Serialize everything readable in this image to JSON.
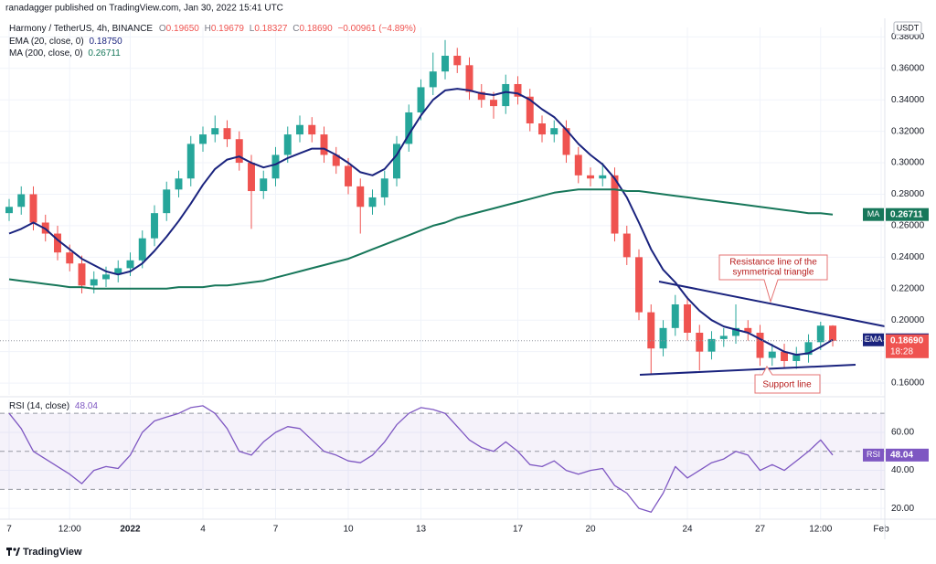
{
  "header": {
    "published": "ranadagger published on TradingView.com, Jan 30, 2022 15:41 UTC"
  },
  "chart_data": [
    {
      "type": "candlestick",
      "title": "Harmony / TetherUS, 4h, BINANCE",
      "quote": [
        "O",
        "0.19650",
        "H",
        "0.19679",
        "L",
        "0.18327",
        "C",
        "0.18690",
        "−0.00961 (−4.89%)"
      ],
      "currency": "USDT",
      "x": [
        0,
        0.5,
        1,
        1.5,
        2,
        2.5,
        3,
        3.5,
        4,
        4.5,
        5,
        5.5,
        6,
        6.5,
        7,
        7.5,
        8,
        8.5,
        9,
        9.5,
        10,
        10.5,
        11,
        11.5,
        12,
        12.5,
        13,
        13.5,
        14,
        14.5,
        15,
        15.5,
        16,
        16.5,
        17,
        17.5,
        18,
        18.5,
        19,
        19.5,
        20,
        20.5,
        21,
        21.5,
        22,
        22.5,
        23,
        23.5,
        24,
        24.5,
        25,
        25.5,
        26,
        26.5,
        27,
        27.5,
        28,
        28.5,
        29,
        29.5,
        30,
        30.5,
        31,
        31.5,
        32,
        32.5,
        33,
        33.5,
        34
      ],
      "open": [
        0.268,
        0.272,
        0.28,
        0.262,
        0.255,
        0.243,
        0.236,
        0.222,
        0.226,
        0.229,
        0.233,
        0.238,
        0.252,
        0.268,
        0.283,
        0.29,
        0.312,
        0.318,
        0.322,
        0.315,
        0.3,
        0.282,
        0.29,
        0.305,
        0.318,
        0.324,
        0.318,
        0.305,
        0.298,
        0.285,
        0.272,
        0.278,
        0.29,
        0.312,
        0.332,
        0.348,
        0.358,
        0.368,
        0.362,
        0.345,
        0.34,
        0.336,
        0.35,
        0.342,
        0.325,
        0.318,
        0.322,
        0.305,
        0.292,
        0.29,
        0.292,
        0.255,
        0.24,
        0.205,
        0.182,
        0.195,
        0.21,
        0.192,
        0.18,
        0.188,
        0.19,
        0.195,
        0.192,
        0.176,
        0.18,
        0.174,
        0.178,
        0.186,
        0.1965
      ],
      "high": [
        0.277,
        0.285,
        0.285,
        0.267,
        0.26,
        0.248,
        0.241,
        0.231,
        0.234,
        0.238,
        0.243,
        0.257,
        0.273,
        0.288,
        0.295,
        0.317,
        0.323,
        0.33,
        0.327,
        0.32,
        0.305,
        0.295,
        0.31,
        0.323,
        0.33,
        0.329,
        0.323,
        0.31,
        0.303,
        0.29,
        0.283,
        0.295,
        0.317,
        0.337,
        0.353,
        0.37,
        0.378,
        0.373,
        0.367,
        0.35,
        0.345,
        0.356,
        0.355,
        0.347,
        0.33,
        0.327,
        0.327,
        0.31,
        0.297,
        0.3,
        0.297,
        0.26,
        0.245,
        0.21,
        0.2,
        0.216,
        0.215,
        0.197,
        0.193,
        0.195,
        0.21,
        0.2,
        0.197,
        0.185,
        0.185,
        0.183,
        0.191,
        0.199,
        0.19679
      ],
      "low": [
        0.263,
        0.267,
        0.257,
        0.25,
        0.238,
        0.231,
        0.217,
        0.217,
        0.221,
        0.224,
        0.228,
        0.233,
        0.247,
        0.263,
        0.278,
        0.285,
        0.307,
        0.313,
        0.31,
        0.295,
        0.258,
        0.277,
        0.285,
        0.3,
        0.313,
        0.313,
        0.3,
        0.293,
        0.28,
        0.255,
        0.267,
        0.273,
        0.285,
        0.307,
        0.327,
        0.343,
        0.353,
        0.357,
        0.34,
        0.335,
        0.328,
        0.331,
        0.337,
        0.32,
        0.313,
        0.313,
        0.3,
        0.287,
        0.285,
        0.285,
        0.25,
        0.235,
        0.2,
        0.166,
        0.177,
        0.19,
        0.187,
        0.168,
        0.175,
        0.183,
        0.185,
        0.187,
        0.171,
        0.171,
        0.169,
        0.169,
        0.173,
        0.181,
        0.18327
      ],
      "close": [
        0.272,
        0.28,
        0.262,
        0.255,
        0.243,
        0.236,
        0.222,
        0.226,
        0.229,
        0.233,
        0.238,
        0.252,
        0.268,
        0.283,
        0.29,
        0.312,
        0.318,
        0.322,
        0.315,
        0.3,
        0.282,
        0.29,
        0.305,
        0.318,
        0.324,
        0.318,
        0.305,
        0.298,
        0.285,
        0.272,
        0.278,
        0.29,
        0.312,
        0.332,
        0.348,
        0.358,
        0.368,
        0.362,
        0.345,
        0.34,
        0.336,
        0.35,
        0.342,
        0.325,
        0.318,
        0.322,
        0.305,
        0.292,
        0.29,
        0.292,
        0.255,
        0.24,
        0.205,
        0.182,
        0.195,
        0.21,
        0.192,
        0.18,
        0.188,
        0.19,
        0.195,
        0.192,
        0.176,
        0.18,
        0.174,
        0.178,
        0.186,
        0.1965,
        0.1869
      ],
      "up_color": "#26a69a",
      "down_color": "#ef5350",
      "series": [
        {
          "name": "EMA (20, close, 0)",
          "tag": "EMA",
          "color": "#1a237e",
          "last_label": "0.18750",
          "values": [
            0.255,
            0.258,
            0.262,
            0.258,
            0.251,
            0.245,
            0.239,
            0.235,
            0.231,
            0.229,
            0.231,
            0.236,
            0.244,
            0.253,
            0.263,
            0.274,
            0.286,
            0.296,
            0.302,
            0.304,
            0.3,
            0.297,
            0.299,
            0.303,
            0.306,
            0.309,
            0.309,
            0.305,
            0.3,
            0.294,
            0.292,
            0.296,
            0.305,
            0.318,
            0.33,
            0.34,
            0.346,
            0.347,
            0.346,
            0.344,
            0.343,
            0.345,
            0.344,
            0.34,
            0.334,
            0.329,
            0.321,
            0.312,
            0.305,
            0.299,
            0.29,
            0.278,
            0.262,
            0.245,
            0.232,
            0.224,
            0.214,
            0.206,
            0.2,
            0.196,
            0.194,
            0.192,
            0.188,
            0.184,
            0.18,
            0.178,
            0.179,
            0.183,
            0.1875
          ]
        },
        {
          "name": "MA (200, close, 0)",
          "tag": "MA",
          "color": "#17775a",
          "last_label": "0.26711",
          "values": [
            0.226,
            0.225,
            0.224,
            0.223,
            0.222,
            0.221,
            0.221,
            0.22,
            0.22,
            0.22,
            0.22,
            0.22,
            0.22,
            0.22,
            0.221,
            0.221,
            0.221,
            0.222,
            0.222,
            0.223,
            0.224,
            0.225,
            0.227,
            0.229,
            0.231,
            0.233,
            0.235,
            0.237,
            0.239,
            0.242,
            0.245,
            0.248,
            0.251,
            0.254,
            0.257,
            0.26,
            0.262,
            0.265,
            0.267,
            0.269,
            0.271,
            0.273,
            0.275,
            0.277,
            0.279,
            0.281,
            0.282,
            0.283,
            0.283,
            0.283,
            0.283,
            0.282,
            0.282,
            0.281,
            0.28,
            0.279,
            0.278,
            0.277,
            0.276,
            0.275,
            0.274,
            0.273,
            0.272,
            0.271,
            0.27,
            0.269,
            0.268,
            0.268,
            0.26711
          ]
        }
      ],
      "last_price_label": "0.18690",
      "countdown": "18:28",
      "ylim": [
        0.1525,
        0.386
      ],
      "yticks": [
        {
          "value": 0.16,
          "label": "0.16000"
        },
        {
          "value": 0.18,
          "label": "0.18000"
        },
        {
          "value": 0.2,
          "label": "0.20000"
        },
        {
          "value": 0.22,
          "label": "0.22000"
        },
        {
          "value": 0.24,
          "label": "0.24000"
        },
        {
          "value": 0.26,
          "label": "0.26000"
        },
        {
          "value": 0.28,
          "label": "0.28000"
        },
        {
          "value": 0.3,
          "label": "0.30000"
        },
        {
          "value": 0.32,
          "label": "0.32000"
        },
        {
          "value": 0.34,
          "label": "0.34000"
        },
        {
          "value": 0.36,
          "label": "0.36000"
        },
        {
          "value": 0.38,
          "label": "0.38000"
        }
      ],
      "xlim": [
        -0.377,
        36.15
      ],
      "xticks": [
        {
          "value": 0,
          "label": "7"
        },
        {
          "value": 2.5,
          "label": "12:00"
        },
        {
          "value": 5,
          "label": "2022"
        },
        {
          "value": 8,
          "label": "4"
        },
        {
          "value": 11,
          "label": "7"
        },
        {
          "value": 14,
          "label": "10"
        },
        {
          "value": 17,
          "label": "13"
        },
        {
          "value": 21,
          "label": "17"
        },
        {
          "value": 24,
          "label": "20"
        },
        {
          "value": 28,
          "label": "24"
        },
        {
          "value": 31,
          "label": "27"
        },
        {
          "value": 33.5,
          "label": "12:00"
        },
        {
          "value": 36,
          "label": "Feb"
        }
      ],
      "grid": true,
      "annotations": [
        [
          "Resistance line of the",
          "symmetrical triangle"
        ],
        "Support line"
      ]
    },
    {
      "type": "line",
      "x": [
        0,
        0.5,
        1,
        1.5,
        2,
        2.5,
        3,
        3.5,
        4,
        4.5,
        5,
        5.5,
        6,
        6.5,
        7,
        7.5,
        8,
        8.5,
        9,
        9.5,
        10,
        10.5,
        11,
        11.5,
        12,
        12.5,
        13,
        13.5,
        14,
        14.5,
        15,
        15.5,
        16,
        16.5,
        17,
        17.5,
        18,
        18.5,
        19,
        19.5,
        20,
        20.5,
        21,
        21.5,
        22,
        22.5,
        23,
        23.5,
        24,
        24.5,
        25,
        25.5,
        26,
        26.5,
        27,
        27.5,
        28,
        28.5,
        29,
        29.5,
        30,
        30.5,
        31,
        31.5,
        32,
        32.5,
        33,
        33.5,
        34
      ],
      "series": [
        {
          "name": "RSI (14, close)",
          "tag": "RSI",
          "color": "#7e57c2",
          "last_label": "48.04",
          "values": [
            70,
            62,
            50,
            46,
            42,
            38,
            33,
            40,
            42,
            41,
            48,
            60,
            66,
            68,
            70,
            73,
            74,
            70,
            62,
            50,
            48,
            55,
            60,
            63,
            62,
            56,
            50,
            48,
            45,
            44,
            48,
            55,
            64,
            70,
            73,
            72,
            70,
            63,
            56,
            52,
            50,
            55,
            50,
            43,
            42,
            45,
            40,
            38,
            40,
            41,
            32,
            28,
            20,
            18,
            28,
            42,
            36,
            40,
            44,
            46,
            50,
            48,
            40,
            43,
            40,
            45,
            50,
            56,
            48.04
          ]
        }
      ],
      "ylim": [
        14.3,
        77.3
      ],
      "yticks": [
        {
          "value": 20,
          "label": "20.00"
        },
        {
          "value": 40,
          "label": "40.00"
        },
        {
          "value": 60,
          "label": "60.00"
        }
      ],
      "xlim": [
        -0.377,
        36.15
      ],
      "levels": [
        30,
        50,
        70
      ],
      "grid": true
    }
  ],
  "footer": {
    "brand": "TradingView"
  }
}
